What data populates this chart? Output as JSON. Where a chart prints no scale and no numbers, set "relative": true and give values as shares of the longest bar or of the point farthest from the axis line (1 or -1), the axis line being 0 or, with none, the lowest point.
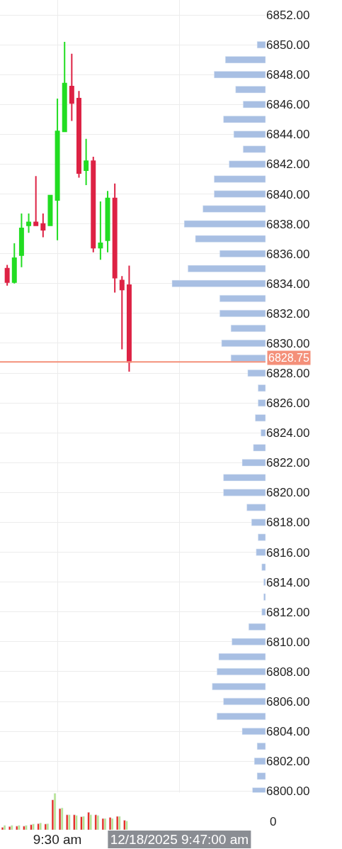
{
  "chart_data": [
    {
      "type": "candlestick",
      "x": [
        "2025-12-18T09:23",
        "2025-12-18T09:24",
        "2025-12-18T09:25",
        "2025-12-18T09:26",
        "2025-12-18T09:27",
        "2025-12-18T09:28",
        "2025-12-18T09:29",
        "2025-12-18T09:30",
        "2025-12-18T09:31",
        "2025-12-18T09:32",
        "2025-12-18T09:33",
        "2025-12-18T09:34",
        "2025-12-18T09:35",
        "2025-12-18T09:36",
        "2025-12-18T09:37",
        "2025-12-18T09:38",
        "2025-12-18T09:39",
        "2025-12-18T09:40"
      ],
      "xlim": [
        "2025-12-18T09:22",
        "2025-12-18T09:59"
      ],
      "xticks": [
        {
          "value": "2025-12-18T09:30",
          "label": "9:30 am"
        },
        {
          "value": "2025-12-18T09:47",
          "label": "12/18/2025 9:47:00 am"
        }
      ],
      "ohlc": [
        [
          6835.0,
          6835.25,
          6833.86,
          6834.1
        ],
        [
          6834.1,
          6836.7,
          6834.0,
          6835.7
        ],
        [
          6835.9,
          6838.7,
          6835.1,
          6837.7
        ],
        [
          6837.9,
          6838.7,
          6837.4,
          6838.1
        ],
        [
          6838.1,
          6841.2,
          6837.9,
          6837.9
        ],
        [
          6838.0,
          6838.7,
          6837.1,
          6837.6
        ],
        [
          6837.9,
          6839.9,
          6837.9,
          6839.9
        ],
        [
          6839.6,
          6846.4,
          6836.9,
          6844.2
        ],
        [
          6844.2,
          6850.2,
          6844.2,
          6847.4
        ],
        [
          6847.2,
          6849.4,
          6844.9,
          6846.1
        ],
        [
          6846.4,
          6846.9,
          6841.1,
          6841.4
        ],
        [
          6841.6,
          6843.7,
          6840.6,
          6842.2
        ],
        [
          6842.2,
          6842.5,
          6836.1,
          6836.4
        ],
        [
          6836.4,
          6839.5,
          6835.6,
          6836.7
        ],
        [
          6836.9,
          6840.2,
          6836.1,
          6839.7
        ],
        [
          6839.7,
          6840.7,
          6833.4,
          6834.4
        ],
        [
          6834.2,
          6834.5,
          6829.6,
          6833.6
        ],
        [
          6833.9,
          6835.2,
          6828.1,
          6828.75
        ]
      ],
      "colors": [
        "#dd2244",
        "#22dd22",
        "#22dd22",
        "#22dd22",
        "#dd2244",
        "#dd2244",
        "#22dd22",
        "#22dd22",
        "#22dd22",
        "#dd2244",
        "#dd2244",
        "#22dd22",
        "#dd2244",
        "#22dd22",
        "#22dd22",
        "#dd2244",
        "#dd2244",
        "#dd2244"
      ],
      "ylim": [
        6797.4,
        6853.0
      ],
      "yticks": [
        {
          "value": 6800,
          "label": "6800.00"
        },
        {
          "value": 6802,
          "label": "6802.00"
        },
        {
          "value": 6804,
          "label": "6804.00"
        },
        {
          "value": 6806,
          "label": "6806.00"
        },
        {
          "value": 6808,
          "label": "6808.00"
        },
        {
          "value": 6810,
          "label": "6810.00"
        },
        {
          "value": 6812,
          "label": "6812.00"
        },
        {
          "value": 6814,
          "label": "6814.00"
        },
        {
          "value": 6816,
          "label": "6816.00"
        },
        {
          "value": 6818,
          "label": "6818.00"
        },
        {
          "value": 6820,
          "label": "6820.00"
        },
        {
          "value": 6822,
          "label": "6822.00"
        },
        {
          "value": 6824,
          "label": "6824.00"
        },
        {
          "value": 6826,
          "label": "6826.00"
        },
        {
          "value": 6828,
          "label": "6828.00"
        },
        {
          "value": 6830,
          "label": "6830.00"
        },
        {
          "value": 6832,
          "label": "6832.00"
        },
        {
          "value": 6834,
          "label": "6834.00"
        },
        {
          "value": 6836,
          "label": "6836.00"
        },
        {
          "value": 6838,
          "label": "6838.00"
        },
        {
          "value": 6840,
          "label": "6840.00"
        },
        {
          "value": 6842,
          "label": "6842.00"
        },
        {
          "value": 6844,
          "label": "6844.00"
        },
        {
          "value": 6846,
          "label": "6846.00"
        },
        {
          "value": 6848,
          "label": "6848.00"
        },
        {
          "value": 6850,
          "label": "6850.00"
        },
        {
          "value": 6852,
          "label": "6852.00"
        }
      ],
      "ref_lines": [
        {
          "axis": "y",
          "value": 6828.75,
          "label": "6828.75",
          "color": "#f4907a"
        }
      ],
      "grid": true
    },
    {
      "type": "bar",
      "orientation": "horizontal",
      "relative": true,
      "color": "#a8bfe3",
      "x": [
        6850,
        6849,
        6848,
        6847,
        6846,
        6845,
        6844,
        6843,
        6842,
        6841,
        6840,
        6839,
        6838,
        6837,
        6836,
        6835,
        6834,
        6833,
        6832,
        6831,
        6830,
        6829,
        6828,
        6827,
        6826,
        6825,
        6824,
        6823,
        6822,
        6821,
        6820,
        6819,
        6818,
        6817,
        6816,
        6815,
        6814,
        6813,
        6812,
        6811,
        6810,
        6809,
        6808,
        6807,
        6806,
        6805,
        6804,
        6803,
        6802,
        6801,
        6800
      ],
      "ylim": [
        6797.4,
        6853.0
      ],
      "tick_labels": false,
      "values": [
        0.09,
        0.43,
        0.55,
        0.32,
        0.24,
        0.45,
        0.34,
        0.24,
        0.39,
        0.55,
        0.55,
        0.67,
        0.87,
        0.75,
        0.49,
        0.83,
        1.0,
        0.49,
        0.49,
        0.37,
        0.47,
        0.37,
        0.19,
        0.08,
        0.08,
        0.11,
        0.05,
        0.13,
        0.25,
        0.45,
        0.45,
        0.2,
        0.15,
        0.08,
        0.1,
        0.04,
        0.02,
        0.02,
        0.04,
        0.18,
        0.36,
        0.5,
        0.52,
        0.57,
        0.45,
        0.52,
        0.25,
        0.09,
        0.12,
        0.09,
        0.14
      ]
    },
    {
      "type": "bar",
      "relative": true,
      "categories": [
        null,
        null,
        null,
        null,
        null,
        null,
        null,
        null,
        null,
        null,
        null,
        null,
        null,
        null,
        null,
        null,
        null,
        null
      ],
      "series": [
        {
          "color": "#e8241c",
          "values": [
            0.07,
            0.09,
            0.1,
            0.1,
            0.14,
            0.17,
            0.16,
            0.82,
            0.58,
            0.41,
            0.41,
            0.36,
            0.48,
            0.41,
            0.31,
            0.34,
            0.37,
            0.26
          ]
        },
        {
          "color": "#b4e38a",
          "values": [
            0.12,
            0.12,
            0.12,
            0.12,
            0.16,
            0.19,
            0.17,
            1.0,
            0.6,
            0.41,
            0.39,
            0.37,
            0.41,
            0.39,
            0.31,
            0.31,
            0.37,
            0.24
          ]
        }
      ],
      "annotations": [
        "0"
      ]
    }
  ]
}
